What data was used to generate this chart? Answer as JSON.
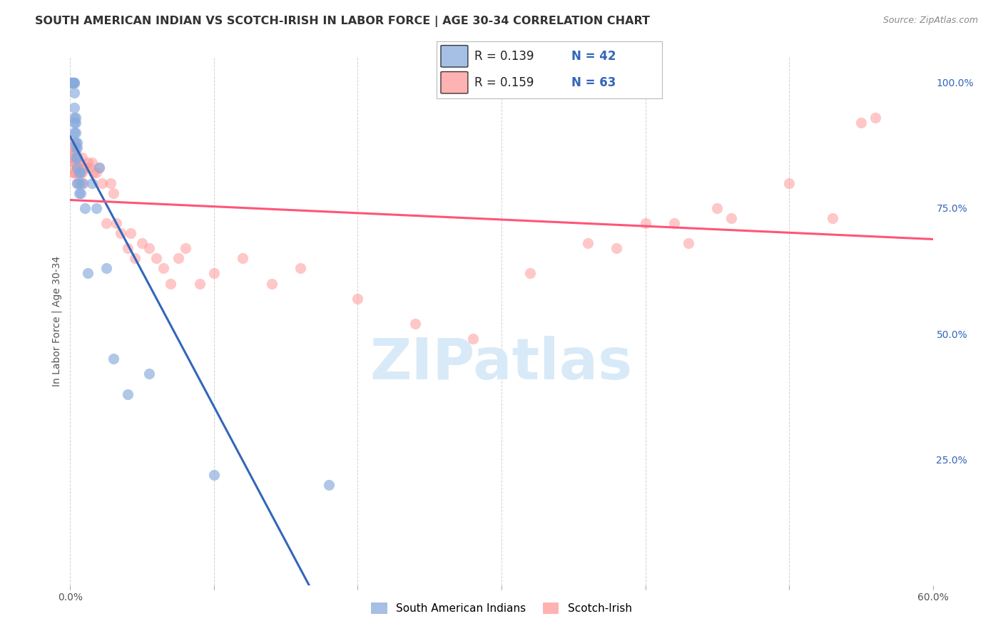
{
  "title": "SOUTH AMERICAN INDIAN VS SCOTCH-IRISH IN LABOR FORCE | AGE 30-34 CORRELATION CHART",
  "source": "Source: ZipAtlas.com",
  "ylabel": "In Labor Force | Age 30-34",
  "xlim": [
    0.0,
    0.6
  ],
  "ylim": [
    0.0,
    1.05
  ],
  "x_ticks": [
    0.0,
    0.1,
    0.2,
    0.3,
    0.4,
    0.5,
    0.6
  ],
  "y_ticks_right": [
    0.0,
    0.25,
    0.5,
    0.75,
    1.0
  ],
  "title_fontsize": 11.5,
  "source_fontsize": 9,
  "blue_color": "#88AADD",
  "pink_color": "#FF9999",
  "blue_line_color": "#3366BB",
  "pink_line_color": "#FF5577",
  "legend_label_blue": "South American Indians",
  "legend_label_pink": "Scotch-Irish",
  "blue_scatter_x": [
    0.001,
    0.001,
    0.002,
    0.002,
    0.002,
    0.002,
    0.002,
    0.003,
    0.003,
    0.003,
    0.003,
    0.003,
    0.003,
    0.003,
    0.004,
    0.004,
    0.004,
    0.004,
    0.004,
    0.004,
    0.005,
    0.005,
    0.005,
    0.005,
    0.005,
    0.006,
    0.006,
    0.006,
    0.007,
    0.007,
    0.008,
    0.01,
    0.012,
    0.015,
    0.018,
    0.02,
    0.025,
    0.03,
    0.04,
    0.055,
    0.1,
    0.18
  ],
  "blue_scatter_y": [
    1.0,
    1.0,
    1.0,
    1.0,
    1.0,
    1.0,
    1.0,
    1.0,
    1.0,
    0.98,
    0.95,
    0.93,
    0.92,
    0.9,
    0.93,
    0.92,
    0.9,
    0.88,
    0.87,
    0.85,
    0.88,
    0.87,
    0.85,
    0.83,
    0.8,
    0.82,
    0.8,
    0.78,
    0.82,
    0.78,
    0.8,
    0.75,
    0.62,
    0.8,
    0.75,
    0.83,
    0.63,
    0.45,
    0.38,
    0.42,
    0.22,
    0.2
  ],
  "pink_scatter_x": [
    0.001,
    0.002,
    0.002,
    0.002,
    0.003,
    0.003,
    0.003,
    0.003,
    0.004,
    0.004,
    0.004,
    0.005,
    0.005,
    0.005,
    0.006,
    0.006,
    0.007,
    0.008,
    0.008,
    0.009,
    0.01,
    0.012,
    0.013,
    0.015,
    0.016,
    0.018,
    0.02,
    0.022,
    0.025,
    0.028,
    0.03,
    0.032,
    0.035,
    0.04,
    0.042,
    0.045,
    0.05,
    0.055,
    0.06,
    0.065,
    0.07,
    0.075,
    0.08,
    0.09,
    0.1,
    0.12,
    0.14,
    0.16,
    0.2,
    0.24,
    0.28,
    0.32,
    0.36,
    0.4,
    0.43,
    0.46,
    0.5,
    0.53,
    0.55,
    0.56,
    0.38,
    0.42,
    0.45
  ],
  "pink_scatter_y": [
    0.85,
    0.87,
    0.84,
    0.82,
    0.88,
    0.86,
    0.84,
    0.82,
    0.86,
    0.84,
    0.82,
    0.85,
    0.83,
    0.8,
    0.84,
    0.82,
    0.83,
    0.85,
    0.82,
    0.8,
    0.83,
    0.84,
    0.83,
    0.84,
    0.82,
    0.82,
    0.83,
    0.8,
    0.72,
    0.8,
    0.78,
    0.72,
    0.7,
    0.67,
    0.7,
    0.65,
    0.68,
    0.67,
    0.65,
    0.63,
    0.6,
    0.65,
    0.67,
    0.6,
    0.62,
    0.65,
    0.6,
    0.63,
    0.57,
    0.52,
    0.49,
    0.62,
    0.68,
    0.72,
    0.68,
    0.73,
    0.8,
    0.73,
    0.92,
    0.93,
    0.67,
    0.72,
    0.75
  ],
  "watermark_text": "ZIPatlas",
  "background_color": "#FFFFFF",
  "grid_color": "#CCCCCC"
}
